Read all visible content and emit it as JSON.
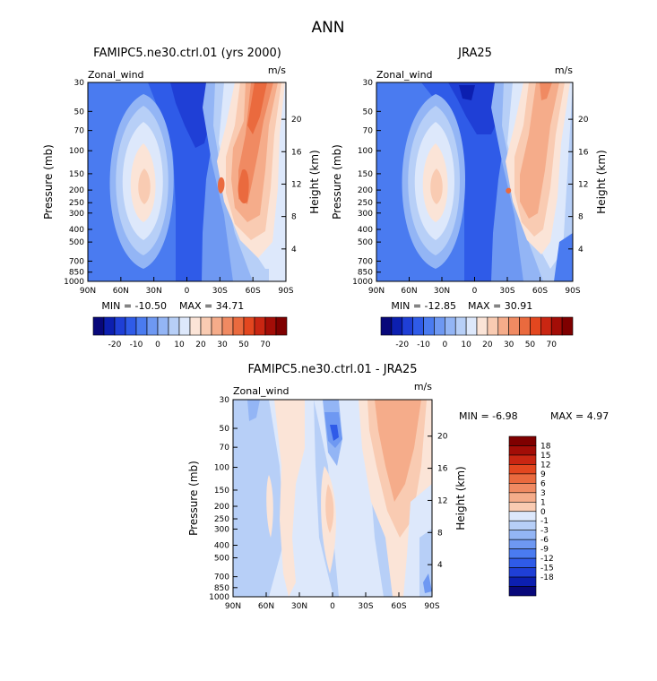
{
  "page": {
    "title": "ANN"
  },
  "colors": {
    "blue_scale": [
      "#08087a",
      "#0c1fb0",
      "#1f3fd6",
      "#2f5be8",
      "#4a7bf0",
      "#6e98f2",
      "#93b5f5",
      "#b7cff7",
      "#dde8fb"
    ],
    "red_scale": [
      "#fbe4d7",
      "#f9cbb2",
      "#f5ac8a",
      "#f08a62",
      "#ea6a3e",
      "#e3471f",
      "#c92612",
      "#a30d07",
      "#7f0000"
    ]
  },
  "chart_data": [
    {
      "type": "contour",
      "title": "FAMIPC5.ne30.ctrl.01 (yrs 2000)",
      "variable": "Zonal_wind",
      "units": "m/s",
      "ylabel": "Pressure (mb)",
      "ylabel_right": "Height (km)",
      "x_ticks": [
        "90N",
        "60N",
        "30N",
        "0",
        "30S",
        "60S",
        "90S"
      ],
      "y_ticks": [
        "30",
        "50",
        "70",
        "100",
        "150",
        "200",
        "250",
        "300",
        "400",
        "500",
        "700",
        "850",
        "1000"
      ],
      "height_ticks": [
        "20",
        "16",
        "12",
        "8",
        "4"
      ],
      "min_label": "MIN = -10.50",
      "max_label": "MAX = 34.71",
      "min": -10.5,
      "max": 34.71,
      "contour_levels": [
        -20,
        -10,
        0,
        10,
        20,
        30,
        50,
        70
      ],
      "colorbar_labels": [
        "-20",
        "-10",
        "0",
        "10",
        "20",
        "30",
        "50",
        "70"
      ],
      "features": [
        {
          "kind": "jet_max",
          "lat": -50,
          "pressure": 200,
          "value": 34.71
        },
        {
          "kind": "jet_max",
          "lat": 35,
          "pressure": 200,
          "value": 22
        },
        {
          "kind": "easterly_min",
          "lat": 5,
          "pressure": 30,
          "value": -10.5
        }
      ]
    },
    {
      "type": "contour",
      "title": "JRA25",
      "variable": "Zonal_wind",
      "units": "m/s",
      "ylabel": "Pressure (mb)",
      "ylabel_right": "Height (km)",
      "x_ticks": [
        "90N",
        "60N",
        "30N",
        "0",
        "30S",
        "60S",
        "90S"
      ],
      "y_ticks": [
        "30",
        "50",
        "70",
        "100",
        "150",
        "200",
        "250",
        "300",
        "400",
        "500",
        "700",
        "850",
        "1000"
      ],
      "height_ticks": [
        "20",
        "16",
        "12",
        "8",
        "4"
      ],
      "min_label": "MIN = -12.85",
      "max_label": "MAX = 30.91",
      "min": -12.85,
      "max": 30.91,
      "contour_levels": [
        -20,
        -10,
        0,
        10,
        20,
        30,
        50,
        70
      ],
      "colorbar_labels": [
        "-20",
        "-10",
        "0",
        "10",
        "20",
        "30",
        "50",
        "70"
      ],
      "features": [
        {
          "kind": "jet_max",
          "lat": -50,
          "pressure": 200,
          "value": 30.91
        },
        {
          "kind": "jet_max",
          "lat": 35,
          "pressure": 200,
          "value": 22
        },
        {
          "kind": "easterly_min",
          "lat": 5,
          "pressure": 30,
          "value": -12.85
        }
      ]
    },
    {
      "type": "contour",
      "title": "FAMIPC5.ne30.ctrl.01 - JRA25",
      "variable": "Zonal_wind",
      "units": "m/s",
      "ylabel": "Pressure (mb)",
      "ylabel_right": "Height (km)",
      "x_ticks": [
        "90N",
        "60N",
        "30N",
        "0",
        "30S",
        "60S",
        "90S"
      ],
      "y_ticks": [
        "30",
        "50",
        "70",
        "100",
        "150",
        "200",
        "250",
        "300",
        "400",
        "500",
        "700",
        "850",
        "1000"
      ],
      "height_ticks": [
        "20",
        "16",
        "12",
        "8",
        "4"
      ],
      "min_label": "MIN =   -6.98",
      "max_label": "MAX =    4.97",
      "min": -6.98,
      "max": 4.97,
      "contour_levels": [
        -18,
        -15,
        -12,
        -9,
        -6,
        -3,
        -1,
        0,
        1,
        3,
        6,
        9,
        12,
        15,
        18
      ],
      "colorbar_labels": [
        "18",
        "15",
        "12",
        "9",
        "6",
        "3",
        "1",
        "0",
        "-1",
        "-3",
        "-6",
        "-9",
        "-12",
        "-15",
        "-18"
      ],
      "features": [
        {
          "kind": "positive_max",
          "lat": -40,
          "pressure": 70,
          "value": 4.97
        },
        {
          "kind": "negative_min",
          "lat": 0,
          "pressure": 50,
          "value": -6.98
        }
      ]
    }
  ]
}
